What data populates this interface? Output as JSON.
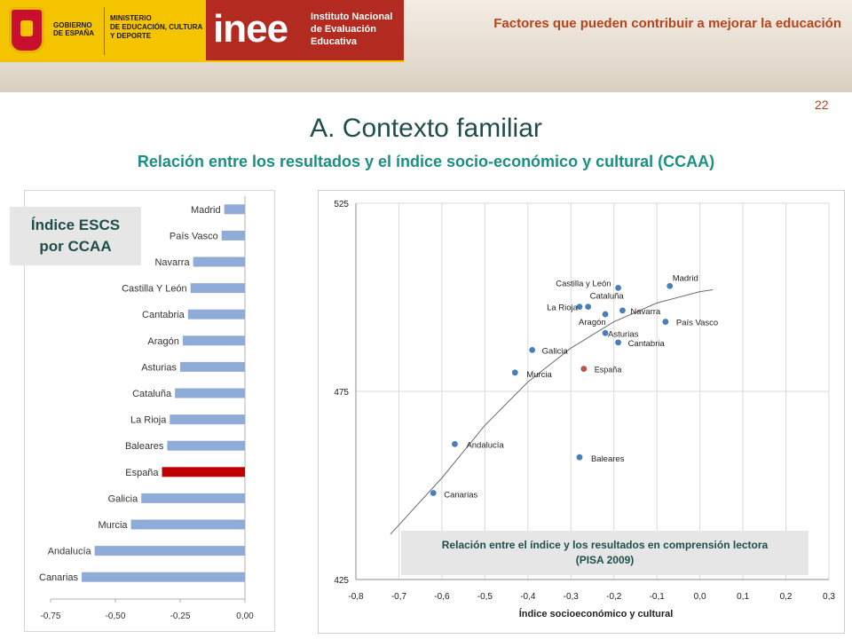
{
  "header": {
    "gob_line1": "GOBIERNO",
    "gob_line2": "DE ESPAÑA",
    "min_line1": "MINISTERIO",
    "min_line2": "DE EDUCACIÓN, CULTURA",
    "min_line3": "Y DEPORTE",
    "inee_mark": "inee",
    "inee_line1": "Instituto Nacional",
    "inee_line2": "de Evaluación",
    "inee_line3": "Educativa",
    "title": "Factores que pueden contribuir a mejorar la educación",
    "page_number": "22"
  },
  "slide": {
    "title": "A. Contexto familiar",
    "subtitle": "Relación entre los resultados y el índice socio-económico y cultural (CCAA)",
    "bar_badge_line1": "Índice ESCS",
    "bar_badge_line2": "por CCAA",
    "scatter_caption_line1": "Relación entre el índice y los resultados en comprensión lectora",
    "scatter_caption_line2": "(PISA 2009)"
  },
  "colors": {
    "bar": "#8fabd8",
    "bar_highlight": "#c00000",
    "point": "#4a7ebb",
    "point_highlight": "#c0504d",
    "accent_title": "#b8431d",
    "subtitle": "#1a8f80"
  },
  "chart_data": [
    {
      "type": "bar",
      "orientation": "horizontal",
      "categories": [
        "Madrid",
        "País Vasco",
        "Navarra",
        "Castilla Y León",
        "Cantabria",
        "Aragón",
        "Asturias",
        "Cataluña",
        "La Rioja",
        "Baleares",
        "España",
        "Galicia",
        "Murcia",
        "Andalucía",
        "Canarias"
      ],
      "values": [
        -0.08,
        -0.09,
        -0.2,
        -0.21,
        -0.22,
        -0.24,
        -0.25,
        -0.27,
        -0.29,
        -0.3,
        -0.32,
        -0.4,
        -0.44,
        -0.58,
        -0.63
      ],
      "highlight": "España",
      "xlim": [
        -0.75,
        0
      ],
      "xticks": [
        "-0,75",
        "-0,50",
        "-0,25",
        "0,00"
      ],
      "title": "Índice ESCS por CCAA"
    },
    {
      "type": "scatter",
      "title": "Relación entre el índice y los resultados en comprensión lectora (PISA 2009)",
      "xlabel": "Índice socioeconómico y cultural",
      "ylabel": "",
      "xlim": [
        -0.8,
        0.3
      ],
      "ylim": [
        425,
        525
      ],
      "xticks": [
        "-0,8",
        "-0,7",
        "-0,6",
        "-0,5",
        "-0,4",
        "-0,3",
        "-0,2",
        "-0,1",
        "0,0",
        "0,1",
        "0,2",
        "0,3"
      ],
      "yticks": [
        "425",
        "475",
        "525"
      ],
      "grid": true,
      "trendline": "polynomial",
      "points": [
        {
          "label": "Madrid",
          "x": -0.07,
          "y": 503
        },
        {
          "label": "Castilla y León",
          "x": -0.19,
          "y": 502.5
        },
        {
          "label": "Cataluña",
          "x": -0.26,
          "y": 497.5
        },
        {
          "label": "La Rioja",
          "x": -0.28,
          "y": 497.5
        },
        {
          "label": "Navarra",
          "x": -0.18,
          "y": 496.5
        },
        {
          "label": "Aragón",
          "x": -0.22,
          "y": 495.5
        },
        {
          "label": "País Vasco",
          "x": -0.08,
          "y": 493.5
        },
        {
          "label": "Asturias",
          "x": -0.22,
          "y": 490.5
        },
        {
          "label": "Cantabria",
          "x": -0.19,
          "y": 488
        },
        {
          "label": "Galicia",
          "x": -0.39,
          "y": 486
        },
        {
          "label": "España",
          "x": -0.27,
          "y": 481,
          "highlight": true
        },
        {
          "label": "Murcia",
          "x": -0.43,
          "y": 480
        },
        {
          "label": "Andalucía",
          "x": -0.57,
          "y": 461
        },
        {
          "label": "Baleares",
          "x": -0.28,
          "y": 457.5
        },
        {
          "label": "Canarias",
          "x": -0.62,
          "y": 448
        }
      ],
      "trend": [
        {
          "x": -0.72,
          "y": 437
        },
        {
          "x": -0.6,
          "y": 452
        },
        {
          "x": -0.5,
          "y": 466
        },
        {
          "x": -0.4,
          "y": 477.5
        },
        {
          "x": -0.3,
          "y": 486.5
        },
        {
          "x": -0.2,
          "y": 493.5
        },
        {
          "x": -0.1,
          "y": 498.5
        },
        {
          "x": 0.0,
          "y": 501.5
        },
        {
          "x": 0.03,
          "y": 502
        }
      ]
    }
  ]
}
